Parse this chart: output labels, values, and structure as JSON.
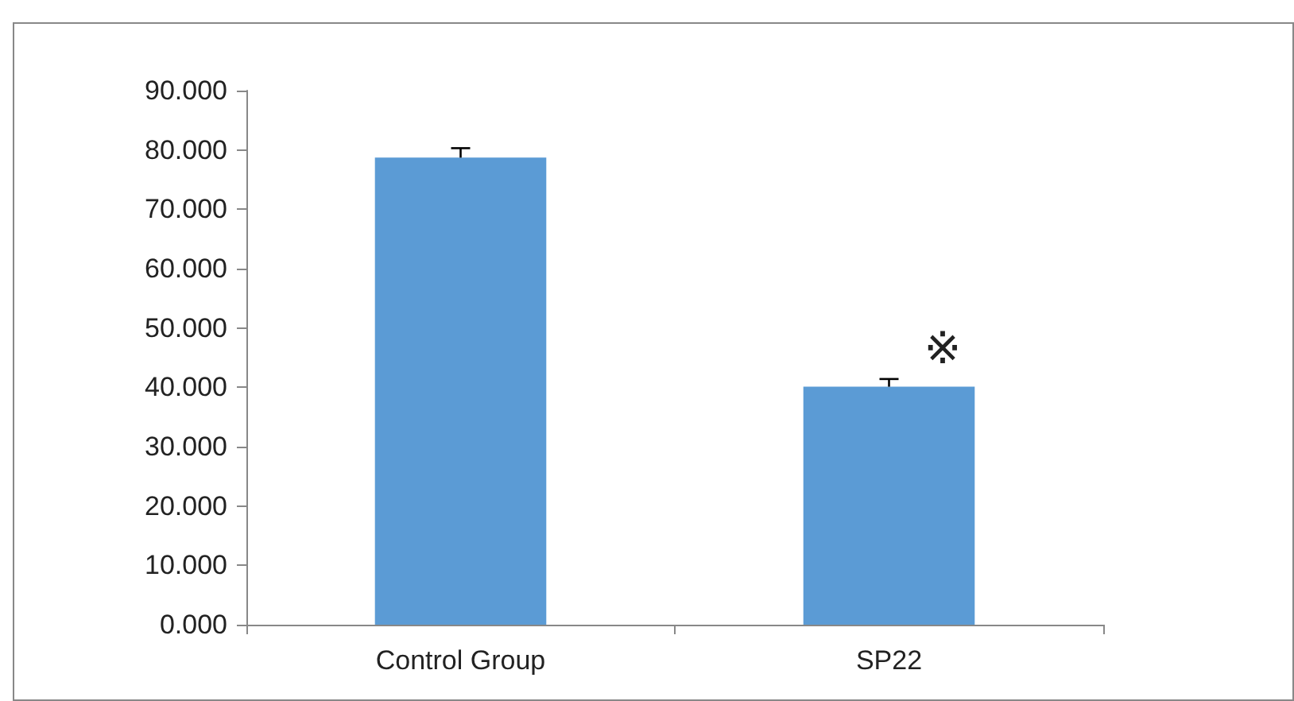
{
  "chart_data": {
    "type": "bar",
    "categories": [
      "Control Group",
      "SP22"
    ],
    "values": [
      78.7,
      40.1
    ],
    "errors": [
      [
        78.7,
        80.3
      ],
      [
        40.1,
        41.4
      ]
    ],
    "color": "#5b9bd5",
    "ylim": [
      0,
      90
    ],
    "yticks": [
      {
        "value": 0,
        "label": "0.000"
      },
      {
        "value": 10,
        "label": "10.000"
      },
      {
        "value": 20,
        "label": "20.000"
      },
      {
        "value": 30,
        "label": "30.000"
      },
      {
        "value": 40,
        "label": "40.000"
      },
      {
        "value": 50,
        "label": "50.000"
      },
      {
        "value": 60,
        "label": "60.000"
      },
      {
        "value": 70,
        "label": "70.000"
      },
      {
        "value": 80,
        "label": "80.000"
      },
      {
        "value": 90,
        "label": "90.000"
      }
    ],
    "annotations": [
      "※"
    ],
    "grid": false
  }
}
